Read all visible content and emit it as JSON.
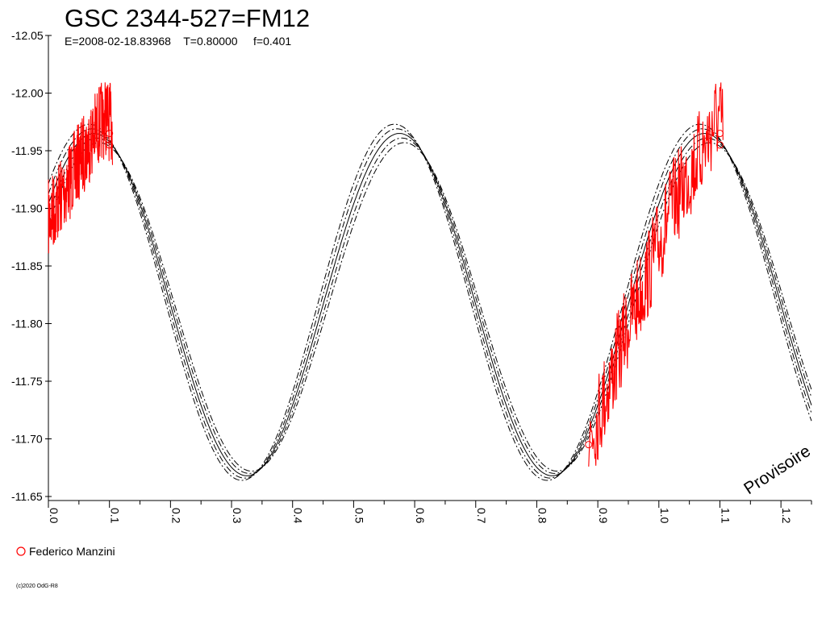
{
  "chart_data": {
    "type": "scatter",
    "title": "GSC 2344-527=FM12",
    "subtitle": "E=2008-02-18.83968    T=0.80000     f=0.401",
    "xlabel": "",
    "ylabel": "",
    "xlim": [
      0.0,
      1.25
    ],
    "ylim": [
      -12.05,
      -11.65
    ],
    "y_inverted": true,
    "x_ticks": [
      "0.0",
      "0.1",
      "0.2",
      "0.3",
      "0.4",
      "0.5",
      "0.6",
      "0.7",
      "0.8",
      "0.9",
      "1.0",
      "1.1",
      "1.2"
    ],
    "y_ticks": [
      "-12.05",
      "-12.00",
      "-11.95",
      "-11.90",
      "-11.85",
      "-11.80",
      "-11.75",
      "-11.70",
      "-11.65"
    ],
    "model_curves": {
      "color": "#000000",
      "style": "dash-dot",
      "mean": -11.8165,
      "amplitude": 0.1485,
      "period": 0.5,
      "phase_of_maximum": 0.575,
      "offsets": [
        0.0,
        -0.005,
        0.005,
        -0.01,
        0.01
      ],
      "amplitude_offsets": [
        0.0,
        0.003,
        -0.003,
        0.006,
        -0.006
      ],
      "phase_offsets": [
        0.0,
        -0.004,
        0.004,
        -0.008,
        0.008
      ]
    },
    "series": [
      {
        "name": "Federico Manzini",
        "color": "#ff0000",
        "marker": "open-circle",
        "segments": [
          {
            "x": [
              0.0,
              0.02,
              0.04,
              0.06,
              0.08,
              0.095,
              0.105
            ],
            "y": [
              -11.89,
              -11.91,
              -11.93,
              -11.95,
              -11.97,
              -11.98,
              -11.97
            ],
            "scatter": 0.035
          },
          {
            "x": [
              0.885,
              0.9,
              0.92,
              0.95,
              0.98,
              1.0,
              1.02,
              1.04,
              1.06,
              1.08,
              1.095,
              1.105
            ],
            "y": [
              -11.7,
              -11.72,
              -11.75,
              -11.8,
              -11.84,
              -11.87,
              -11.9,
              -11.92,
              -11.94,
              -11.96,
              -11.98,
              -11.97
            ],
            "scatter": 0.04
          }
        ],
        "circles": [
          {
            "x": 0.1,
            "y": -11.965
          },
          {
            "x": 0.1,
            "y": -11.955
          },
          {
            "x": 0.885,
            "y": -11.695
          },
          {
            "x": 1.1,
            "y": -11.965
          },
          {
            "x": 1.1,
            "y": -11.955
          }
        ]
      }
    ],
    "legend": {
      "placement": "bottom-left",
      "label": "Federico Manzini"
    },
    "watermark": "Provisoire",
    "copyright": "(c)2020 OdG-R8",
    "grid": false
  }
}
